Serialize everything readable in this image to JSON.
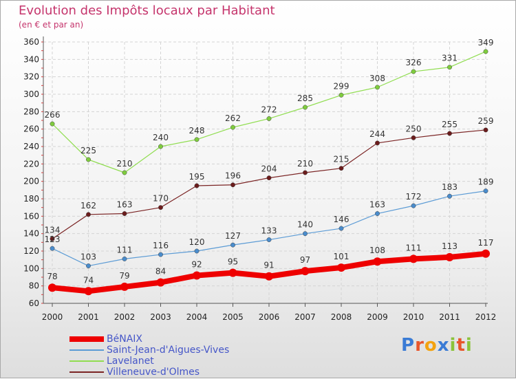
{
  "header": {
    "title": "Evolution des Impôts locaux par Habitant",
    "subtitle": "(en € et par an)"
  },
  "logo": {
    "text": "Proxiti",
    "letter_colors": [
      "#3a7bd5",
      "#e8552b",
      "#f3a20f",
      "#3a7bd5",
      "#8bc33a",
      "#e8552b",
      "#8bc33a"
    ]
  },
  "chart_data": {
    "type": "line",
    "x": [
      "2000",
      "2001",
      "2002",
      "2003",
      "2004",
      "2005",
      "2006",
      "2007",
      "2008",
      "2009",
      "2010",
      "2011",
      "2012"
    ],
    "ylim": [
      60,
      360
    ],
    "yticks": [
      60,
      80,
      100,
      120,
      140,
      160,
      180,
      200,
      220,
      240,
      260,
      280,
      300,
      320,
      340,
      360
    ],
    "grid": true,
    "legend_position": "bottom-left",
    "series": [
      {
        "name": "BéNAIX",
        "color": "#ee0000",
        "values": [
          78,
          74,
          79,
          84,
          92,
          95,
          91,
          97,
          101,
          108,
          111,
          113,
          117
        ],
        "labels": [
          "78",
          "74",
          "79",
          "84",
          "92",
          "95",
          "91",
          "97",
          "101",
          "108",
          "111",
          "113",
          "117"
        ]
      },
      {
        "name": "Saint-Jean-d'Aigues-Vives",
        "color": "#5b9bd5",
        "values": [
          123,
          103,
          111,
          116,
          120,
          127,
          133,
          140,
          146,
          163,
          172,
          183,
          189
        ],
        "labels": [
          "123",
          "103",
          "111",
          "116",
          "120",
          "127",
          "133",
          "140",
          "146",
          "163",
          "172",
          "183",
          "189"
        ]
      },
      {
        "name": "Lavelanet",
        "color": "#90dd50",
        "values": [
          266,
          225,
          210,
          240,
          248,
          262,
          272,
          285,
          299,
          308,
          326,
          331,
          349
        ],
        "labels": [
          "266",
          "225",
          "210",
          "240",
          "248",
          "262",
          "272",
          "285",
          "299",
          "308",
          "326",
          "331",
          "349"
        ]
      },
      {
        "name": "Villeneuve-d'Olmes",
        "color": "#7a2323",
        "values": [
          134,
          162,
          163,
          170,
          195,
          196,
          204,
          210,
          215,
          244,
          250,
          255,
          259
        ],
        "labels": [
          "134",
          "162",
          "163",
          "170",
          "195",
          "196",
          "204",
          "210",
          "215",
          "244",
          "250",
          "255",
          "259"
        ]
      }
    ]
  }
}
